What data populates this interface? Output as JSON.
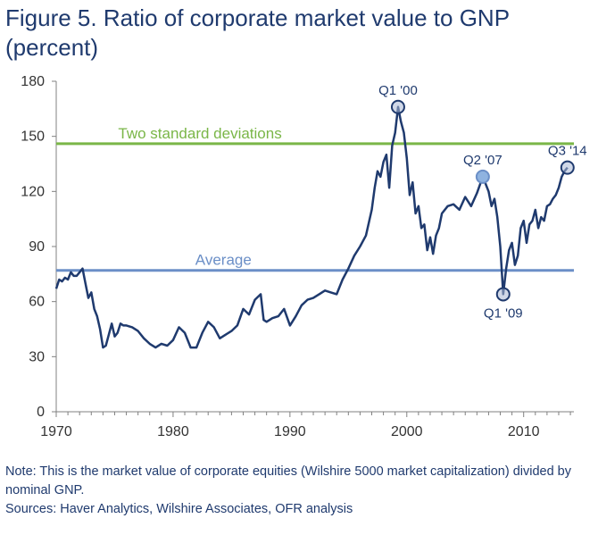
{
  "title_line1": "Figure 5. Ratio of corporate market value to GNP",
  "title_line2": "(percent)",
  "chart_data": {
    "type": "line",
    "x_range": [
      1970,
      2014.3
    ],
    "ylim": [
      0,
      180
    ],
    "y_ticks": [
      0,
      30,
      60,
      90,
      120,
      150,
      180
    ],
    "x_ticks": [
      1970,
      1980,
      1990,
      2000,
      2010
    ],
    "series": [
      {
        "name": "Corporate market value to GNP",
        "color": "#1f3a6e",
        "points": [
          [
            1970.0,
            67
          ],
          [
            1970.25,
            72
          ],
          [
            1970.5,
            71
          ],
          [
            1970.75,
            73
          ],
          [
            1971.0,
            72
          ],
          [
            1971.25,
            76
          ],
          [
            1971.5,
            74
          ],
          [
            1971.75,
            74
          ],
          [
            1972.0,
            76
          ],
          [
            1972.25,
            78
          ],
          [
            1972.5,
            70
          ],
          [
            1972.75,
            62
          ],
          [
            1973.0,
            65
          ],
          [
            1973.25,
            56
          ],
          [
            1973.5,
            52
          ],
          [
            1973.75,
            45
          ],
          [
            1974.0,
            35
          ],
          [
            1974.25,
            36
          ],
          [
            1974.5,
            42
          ],
          [
            1974.75,
            48
          ],
          [
            1975.0,
            41
          ],
          [
            1975.25,
            43
          ],
          [
            1975.5,
            48
          ],
          [
            1975.75,
            47
          ],
          [
            1976.0,
            47
          ],
          [
            1976.5,
            46
          ],
          [
            1977.0,
            44
          ],
          [
            1977.5,
            40
          ],
          [
            1978.0,
            37
          ],
          [
            1978.5,
            35
          ],
          [
            1979.0,
            37
          ],
          [
            1979.5,
            36
          ],
          [
            1980.0,
            39
          ],
          [
            1980.5,
            46
          ],
          [
            1981.0,
            43
          ],
          [
            1981.5,
            35
          ],
          [
            1982.0,
            35
          ],
          [
            1982.5,
            43
          ],
          [
            1983.0,
            49
          ],
          [
            1983.5,
            46
          ],
          [
            1984.0,
            40
          ],
          [
            1984.5,
            42
          ],
          [
            1985.0,
            44
          ],
          [
            1985.5,
            47
          ],
          [
            1986.0,
            56
          ],
          [
            1986.5,
            53
          ],
          [
            1987.0,
            61
          ],
          [
            1987.5,
            64
          ],
          [
            1987.75,
            50
          ],
          [
            1988.0,
            49
          ],
          [
            1988.5,
            51
          ],
          [
            1989.0,
            52
          ],
          [
            1989.5,
            56
          ],
          [
            1990.0,
            47
          ],
          [
            1990.5,
            52
          ],
          [
            1991.0,
            58
          ],
          [
            1991.5,
            61
          ],
          [
            1992.0,
            62
          ],
          [
            1992.5,
            64
          ],
          [
            1993.0,
            66
          ],
          [
            1993.5,
            65
          ],
          [
            1994.0,
            64
          ],
          [
            1994.5,
            72
          ],
          [
            1995.0,
            78
          ],
          [
            1995.5,
            85
          ],
          [
            1996.0,
            90
          ],
          [
            1996.5,
            96
          ],
          [
            1997.0,
            110
          ],
          [
            1997.25,
            122
          ],
          [
            1997.5,
            131
          ],
          [
            1997.75,
            128
          ],
          [
            1998.0,
            136
          ],
          [
            1998.25,
            140
          ],
          [
            1998.5,
            122
          ],
          [
            1998.75,
            145
          ],
          [
            1999.0,
            152
          ],
          [
            1999.25,
            166
          ],
          [
            1999.5,
            158
          ],
          [
            1999.75,
            152
          ],
          [
            2000.0,
            138
          ],
          [
            2000.25,
            118
          ],
          [
            2000.5,
            125
          ],
          [
            2000.75,
            108
          ],
          [
            2001.0,
            112
          ],
          [
            2001.25,
            100
          ],
          [
            2001.5,
            102
          ],
          [
            2001.75,
            88
          ],
          [
            2002.0,
            95
          ],
          [
            2002.25,
            86
          ],
          [
            2002.5,
            96
          ],
          [
            2002.75,
            100
          ],
          [
            2003.0,
            108
          ],
          [
            2003.5,
            112
          ],
          [
            2004.0,
            113
          ],
          [
            2004.5,
            110
          ],
          [
            2005.0,
            117
          ],
          [
            2005.5,
            112
          ],
          [
            2006.0,
            119
          ],
          [
            2006.5,
            128
          ],
          [
            2006.75,
            124
          ],
          [
            2007.0,
            120
          ],
          [
            2007.25,
            112
          ],
          [
            2007.5,
            116
          ],
          [
            2007.75,
            106
          ],
          [
            2008.0,
            90
          ],
          [
            2008.25,
            64
          ],
          [
            2008.5,
            78
          ],
          [
            2008.75,
            88
          ],
          [
            2009.0,
            92
          ],
          [
            2009.25,
            80
          ],
          [
            2009.5,
            85
          ],
          [
            2009.75,
            100
          ],
          [
            2010.0,
            104
          ],
          [
            2010.25,
            92
          ],
          [
            2010.5,
            102
          ],
          [
            2010.75,
            104
          ],
          [
            2011.0,
            110
          ],
          [
            2011.25,
            100
          ],
          [
            2011.5,
            106
          ],
          [
            2011.75,
            104
          ],
          [
            2012.0,
            112
          ],
          [
            2012.25,
            113
          ],
          [
            2012.5,
            116
          ],
          [
            2012.75,
            118
          ],
          [
            2013.0,
            122
          ],
          [
            2013.25,
            128
          ],
          [
            2013.5,
            131
          ],
          [
            2013.75,
            133
          ]
        ]
      }
    ],
    "reference_lines": [
      {
        "label": "Two standard deviations",
        "value": 146,
        "color": "#7ab648"
      },
      {
        "label": "Average",
        "value": 77,
        "color": "#6b8fc7"
      }
    ],
    "annotations": [
      {
        "label": "Q1 '00",
        "x": 1999.25,
        "y": 166,
        "highlight": false,
        "label_pos": "above"
      },
      {
        "label": "Q2 '07",
        "x": 2006.5,
        "y": 128,
        "highlight": true,
        "label_pos": "above"
      },
      {
        "label": "Q1 '09",
        "x": 2008.25,
        "y": 64,
        "highlight": false,
        "label_pos": "below"
      },
      {
        "label": "Q3 '14",
        "x": 2013.75,
        "y": 133,
        "highlight": false,
        "label_pos": "above"
      }
    ]
  },
  "note": "Note: This is the market value of corporate equities (Wilshire 5000 market capitalization) divided by nominal GNP.",
  "sources": "Sources: Haver Analytics, Wilshire Associates, OFR analysis"
}
